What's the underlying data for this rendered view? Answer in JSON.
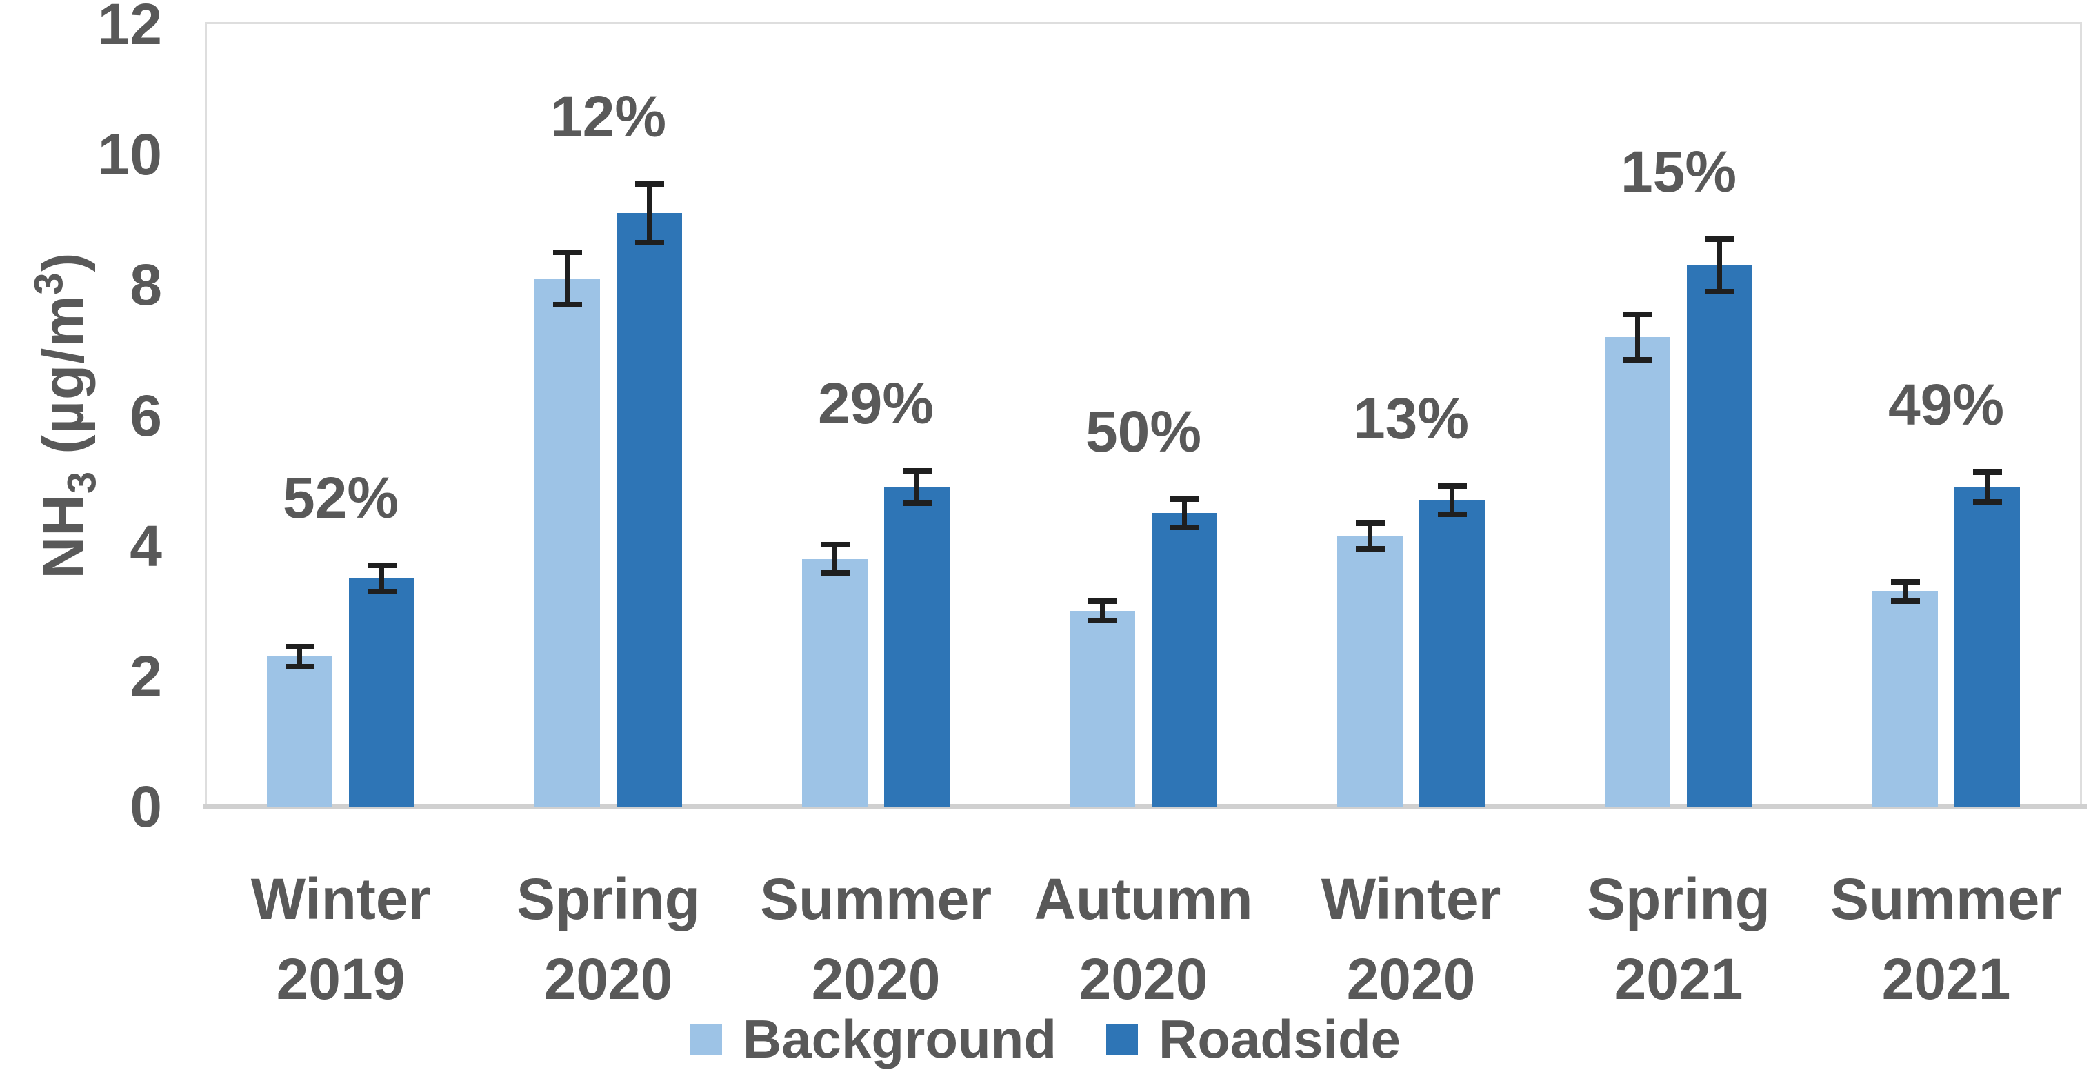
{
  "chart_data": {
    "type": "bar",
    "title": "",
    "ylabel": "NH₃ (µg/m³)",
    "ylabel_parts": {
      "base1": "NH",
      "sub1": "3",
      "base2": " (µg/m",
      "sup1": "3",
      "base3": ")"
    },
    "xlabel": "",
    "ylim": [
      0,
      12
    ],
    "ytick_step": 2,
    "ytick_labels": [
      "0",
      "2",
      "4",
      "6",
      "8",
      "10",
      "12"
    ],
    "grid": "off",
    "legend_position": "bottom",
    "categories": [
      {
        "line1": "Winter",
        "line2": "2019"
      },
      {
        "line1": "Spring",
        "line2": "2020"
      },
      {
        "line1": "Summer",
        "line2": "2020"
      },
      {
        "line1": "Autumn",
        "line2": "2020"
      },
      {
        "line1": "Winter",
        "line2": "2020"
      },
      {
        "line1": "Spring",
        "line2": "2021"
      },
      {
        "line1": "Summer",
        "line2": "2021"
      }
    ],
    "series": [
      {
        "name": "Background",
        "color": "#9DC3E6",
        "values": [
          2.3,
          8.1,
          3.8,
          3.0,
          4.15,
          7.2,
          3.3
        ],
        "errors": [
          0.15,
          0.4,
          0.22,
          0.15,
          0.2,
          0.35,
          0.15
        ]
      },
      {
        "name": "Roadside",
        "color": "#2E75B6",
        "values": [
          3.5,
          9.1,
          4.9,
          4.5,
          4.7,
          8.3,
          4.9
        ],
        "errors": [
          0.2,
          0.45,
          0.25,
          0.22,
          0.22,
          0.4,
          0.23
        ]
      }
    ],
    "group_percent_labels": [
      "52%",
      "12%",
      "29%",
      "50%",
      "13%",
      "15%",
      "49%"
    ],
    "colors": {
      "text": "#595959",
      "plot_border": "#DEDEDE",
      "axis_line": "#D0D0D0",
      "error_bar": "#1F1F1F",
      "background": "#FFFFFF"
    }
  }
}
